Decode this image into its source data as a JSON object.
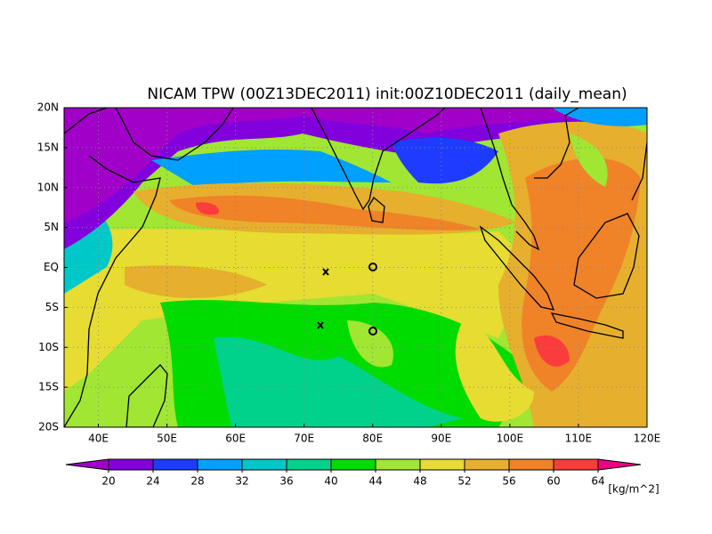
{
  "title": "NICAM TPW (00Z13DEC2011) init:00Z10DEC2011 (daily_mean)",
  "map": {
    "lat_ticks": [
      "20N",
      "15N",
      "10N",
      "5N",
      "EQ",
      "5S",
      "10S",
      "15S",
      "20S"
    ],
    "lon_ticks": [
      "40E",
      "50E",
      "60E",
      "70E",
      "80E",
      "90E",
      "100E",
      "110E",
      "120E"
    ]
  },
  "colorbar": {
    "levels": [
      20,
      24,
      28,
      32,
      36,
      40,
      44,
      48,
      52,
      56,
      60,
      64
    ],
    "colors": [
      "#a000c8",
      "#8200dc",
      "#1e3cff",
      "#00a0ff",
      "#00c8c8",
      "#00d28c",
      "#00dc00",
      "#a0e632",
      "#e6dc32",
      "#e6af2d",
      "#f08228",
      "#fa3c3c",
      "#f00082"
    ],
    "unit": "[kg/m^2]"
  }
}
